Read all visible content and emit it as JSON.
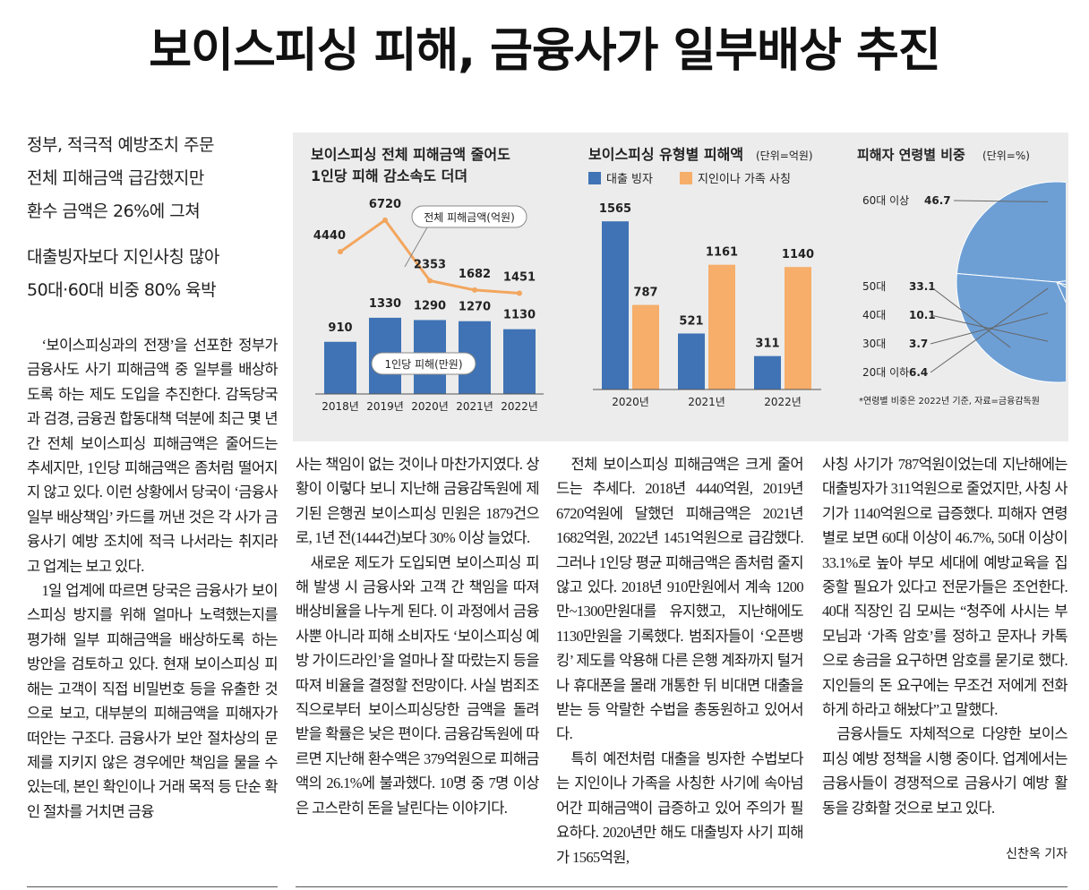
{
  "headline": "보이스피싱 피해, 금융사가 일부배상 추진",
  "subheads": [
    [
      "정부, 적극적 예방조치 주문",
      "전체 피해금액 급감했지만",
      "환수 금액은 26%에 그쳐"
    ],
    [
      "대출빙자보다 지인사칭 많아",
      "50대·60대 비중 80% 육박"
    ]
  ],
  "chart_data": [
    {
      "type": "bar_line",
      "title": [
        "보이스피싱 전체 피해금액 줄어도",
        "1인당 피해 감소속도 더뎌"
      ],
      "categories": [
        "2018년",
        "2019년",
        "2020년",
        "2021년",
        "2022년"
      ],
      "series": [
        {
          "name": "1인당 피해(만원)",
          "color": "#3f73b5",
          "values": [
            910,
            1330,
            1290,
            1270,
            1130
          ]
        },
        {
          "name": "전체 피해금액(억원)",
          "color": "#f2a65e",
          "values": [
            4440,
            6720,
            2353,
            1682,
            1451
          ]
        }
      ]
    },
    {
      "type": "bar",
      "title": "보이스피싱 유형별 피해액",
      "unit": "(단위=억원)",
      "categories": [
        "2020년",
        "2021년",
        "2022년"
      ],
      "series": [
        {
          "name": "대출 빙자",
          "color": "#3f73b5",
          "values": [
            1565,
            521,
            311
          ]
        },
        {
          "name": "지인이나 가족 사칭",
          "color": "#f6ae6a",
          "values": [
            787,
            1161,
            1140
          ]
        }
      ]
    },
    {
      "type": "pie",
      "title": "피해자 연령별 비중",
      "unit": "(단위=%)",
      "labels": [
        "60대 이상",
        "50대",
        "40대",
        "30대",
        "20대 이하"
      ],
      "values": [
        46.7,
        33.1,
        10.1,
        3.7,
        6.4
      ],
      "color": "#6d9fd5",
      "note": "*연령별 비중은 2022년 기준, 자료=금융감독원"
    }
  ],
  "body": {
    "columns": [
      [
        "‘보이스피싱과의 전쟁’을 선포한 정부가 금융사도 사기 피해금액 중 일부를 배상하도록 하는 제도 도입을 추진한다. 감독당국과 검경, 금융권 합동대책 덕분에 최근 몇 년간 전체 보이스피싱 피해금액은 줄어드는 추세지만, 1인당 피해금액은 좀처럼 떨어지지 않고 있다. 이런 상황에서 당국이 ‘금융사 일부 배상책임’ 카드를 꺼낸 것은 각 사가 금융사기 예방 조치에 적극 나서라는 취지라고 업계는 보고 있다.",
        "1일 업계에 따르면 당국은 금융사가 보이스피싱 방지를 위해 얼마나 노력했는지를 평가해 일부 피해금액을 배상하도록 하는 방안을 검토하고 있다. 현재 보이스피싱 피해는 고객이 직접 비밀번호 등을 유출한 것으로 보고, 대부분의 피해금액을 피해자가 떠안는 구조다. 금융사가 보안 절차상의 문제를 지키지 않은 경우에만 책임을 물을 수 있는데, 본인 확인이나 거래 목적 등 단순 확인 절차를 거치면 금융"
      ],
      [
        "사는 책임이 없는 것이나 마찬가지였다. 상황이 이렇다 보니 지난해 금융감독원에 제기된 은행권 보이스피싱 민원은 1879건으로, 1년 전(1444건)보다 30% 이상 늘었다.",
        "새로운 제도가 도입되면 보이스피싱 피해 발생 시 금융사와 고객 간 책임을 따져 배상비율을 나누게 된다. 이 과정에서 금융사뿐 아니라 피해 소비자도 ‘보이스피싱 예방 가이드라인’을 얼마나 잘 따랐는지 등을 따져 비율을 결정할 전망이다. 사실 범죄조직으로부터 보이스피싱당한 금액을 돌려받을 확률은 낮은 편이다. 금융감독원에 따르면 지난해 환수액은 379억원으로 피해금액의 26.1%에 불과했다. 10명 중 7명 이상은 고스란히 돈을 날린다는 이야기다."
      ],
      [
        "전체 보이스피싱 피해금액은 크게 줄어드는 추세다. 2018년 4440억원, 2019년 6720억원에 달했던 피해금액은 2021년 1682억원, 2022년 1451억원으로 급감했다. 그러나 1인당 평균 피해금액은 좀처럼 줄지 않고 있다. 2018년 910만원에서 계속 1200만~1300만원대를 유지했고, 지난해에도 1130만원을 기록했다. 범죄자들이 ‘오픈뱅킹’ 제도를 악용해 다른 은행 계좌까지 털거나 휴대폰을 몰래 개통한 뒤 비대면 대출을 받는 등 악랄한 수법을 총동원하고 있어서다.",
        "특히 예전처럼 대출을 빙자한 수법보다는 지인이나 가족을 사칭한 사기에 속아넘어간 피해금액이 급증하고 있어 주의가 필요하다. 2020년만 해도 대출빙자 사기 피해가 1565억원,"
      ],
      [
        "사칭 사기가 787억원이었는데 지난해에는 대출빙자가 311억원으로 줄었지만, 사칭 사기가 1140억원으로 급증했다. 피해자 연령별로 보면 60대 이상이 46.7%, 50대 이상이 33.1%로 높아 부모 세대에 예방교육을 집중할 필요가 있다고 전문가들은 조언한다. 40대 직장인 김 모씨는 “청주에 사시는 부모님과 ‘가족 암호’를 정하고 문자나 카톡으로 송금을 요구하면 암호를 묻기로 했다. 지인들의 돈 요구에는 무조건 저에게 전화하게 하라고 해놨다”고 말했다.",
        "금융사들도 자체적으로 다양한 보이스피싱 예방 정책을 시행 중이다. 업계에서는 금융사들이 경쟁적으로 금융사기 예방 활동을 강화할 것으로 보고 있다."
      ]
    ]
  },
  "byline": "신찬옥 기자"
}
